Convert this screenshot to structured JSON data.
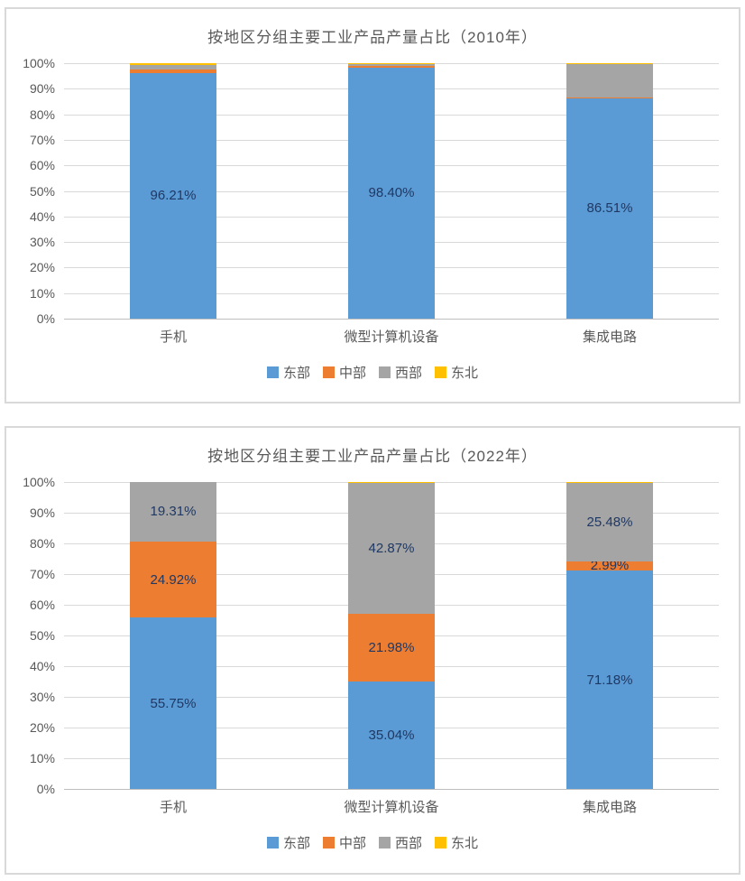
{
  "colors": {
    "axis_text": "#595959",
    "title_text": "#595959",
    "data_label": "#1F3864",
    "gridline": "#D9D9D9",
    "panel_border": "#D9D9D9",
    "east_blue": "#5B9BD5",
    "central_orange": "#ED7D31",
    "west_gray": "#A5A5A5",
    "northeast_yellow": "#FFC000"
  },
  "chart_data": [
    {
      "type": "bar",
      "stacked": true,
      "title": "按地区分组主要工业产品产量占比（2010年）",
      "categories": [
        "手机",
        "微型计算机设备",
        "集成电路"
      ],
      "series": [
        {
          "name": "东部",
          "color": "#5B9BD5",
          "values": [
            96.21,
            98.4,
            86.51
          ],
          "labels": [
            "96.21%",
            "98.40%",
            "86.51%"
          ]
        },
        {
          "name": "中部",
          "color": "#ED7D31",
          "values": [
            1.4,
            0.4,
            0.15
          ],
          "labels": [
            null,
            null,
            null
          ]
        },
        {
          "name": "西部",
          "color": "#A5A5A5",
          "values": [
            1.7,
            0.7,
            12.84
          ],
          "labels": [
            null,
            null,
            null
          ]
        },
        {
          "name": "东北",
          "color": "#FFC000",
          "values": [
            0.69,
            0.5,
            0.5
          ],
          "labels": [
            null,
            null,
            null
          ]
        }
      ],
      "ylim": [
        0,
        100
      ],
      "yticks": [
        "0%",
        "10%",
        "20%",
        "30%",
        "40%",
        "50%",
        "60%",
        "70%",
        "80%",
        "90%",
        "100%"
      ],
      "grid": true,
      "legend_position": "bottom"
    },
    {
      "type": "bar",
      "stacked": true,
      "title": "按地区分组主要工业产品产量占比（2022年）",
      "categories": [
        "手机",
        "微型计算机设备",
        "集成电路"
      ],
      "series": [
        {
          "name": "东部",
          "color": "#5B9BD5",
          "values": [
            55.75,
            35.04,
            71.18
          ],
          "labels": [
            "55.75%",
            "35.04%",
            "71.18%"
          ]
        },
        {
          "name": "中部",
          "color": "#ED7D31",
          "values": [
            24.92,
            21.98,
            2.99
          ],
          "labels": [
            "24.92%",
            "21.98%",
            "2.99%"
          ]
        },
        {
          "name": "西部",
          "color": "#A5A5A5",
          "values": [
            19.31,
            42.87,
            25.48
          ],
          "labels": [
            "19.31%",
            "42.87%",
            "25.48%"
          ]
        },
        {
          "name": "东北",
          "color": "#FFC000",
          "values": [
            0.02,
            0.11,
            0.35
          ],
          "labels": [
            null,
            null,
            null
          ]
        }
      ],
      "ylim": [
        0,
        100
      ],
      "yticks": [
        "0%",
        "10%",
        "20%",
        "30%",
        "40%",
        "50%",
        "60%",
        "70%",
        "80%",
        "90%",
        "100%"
      ],
      "grid": true,
      "legend_position": "bottom"
    }
  ]
}
